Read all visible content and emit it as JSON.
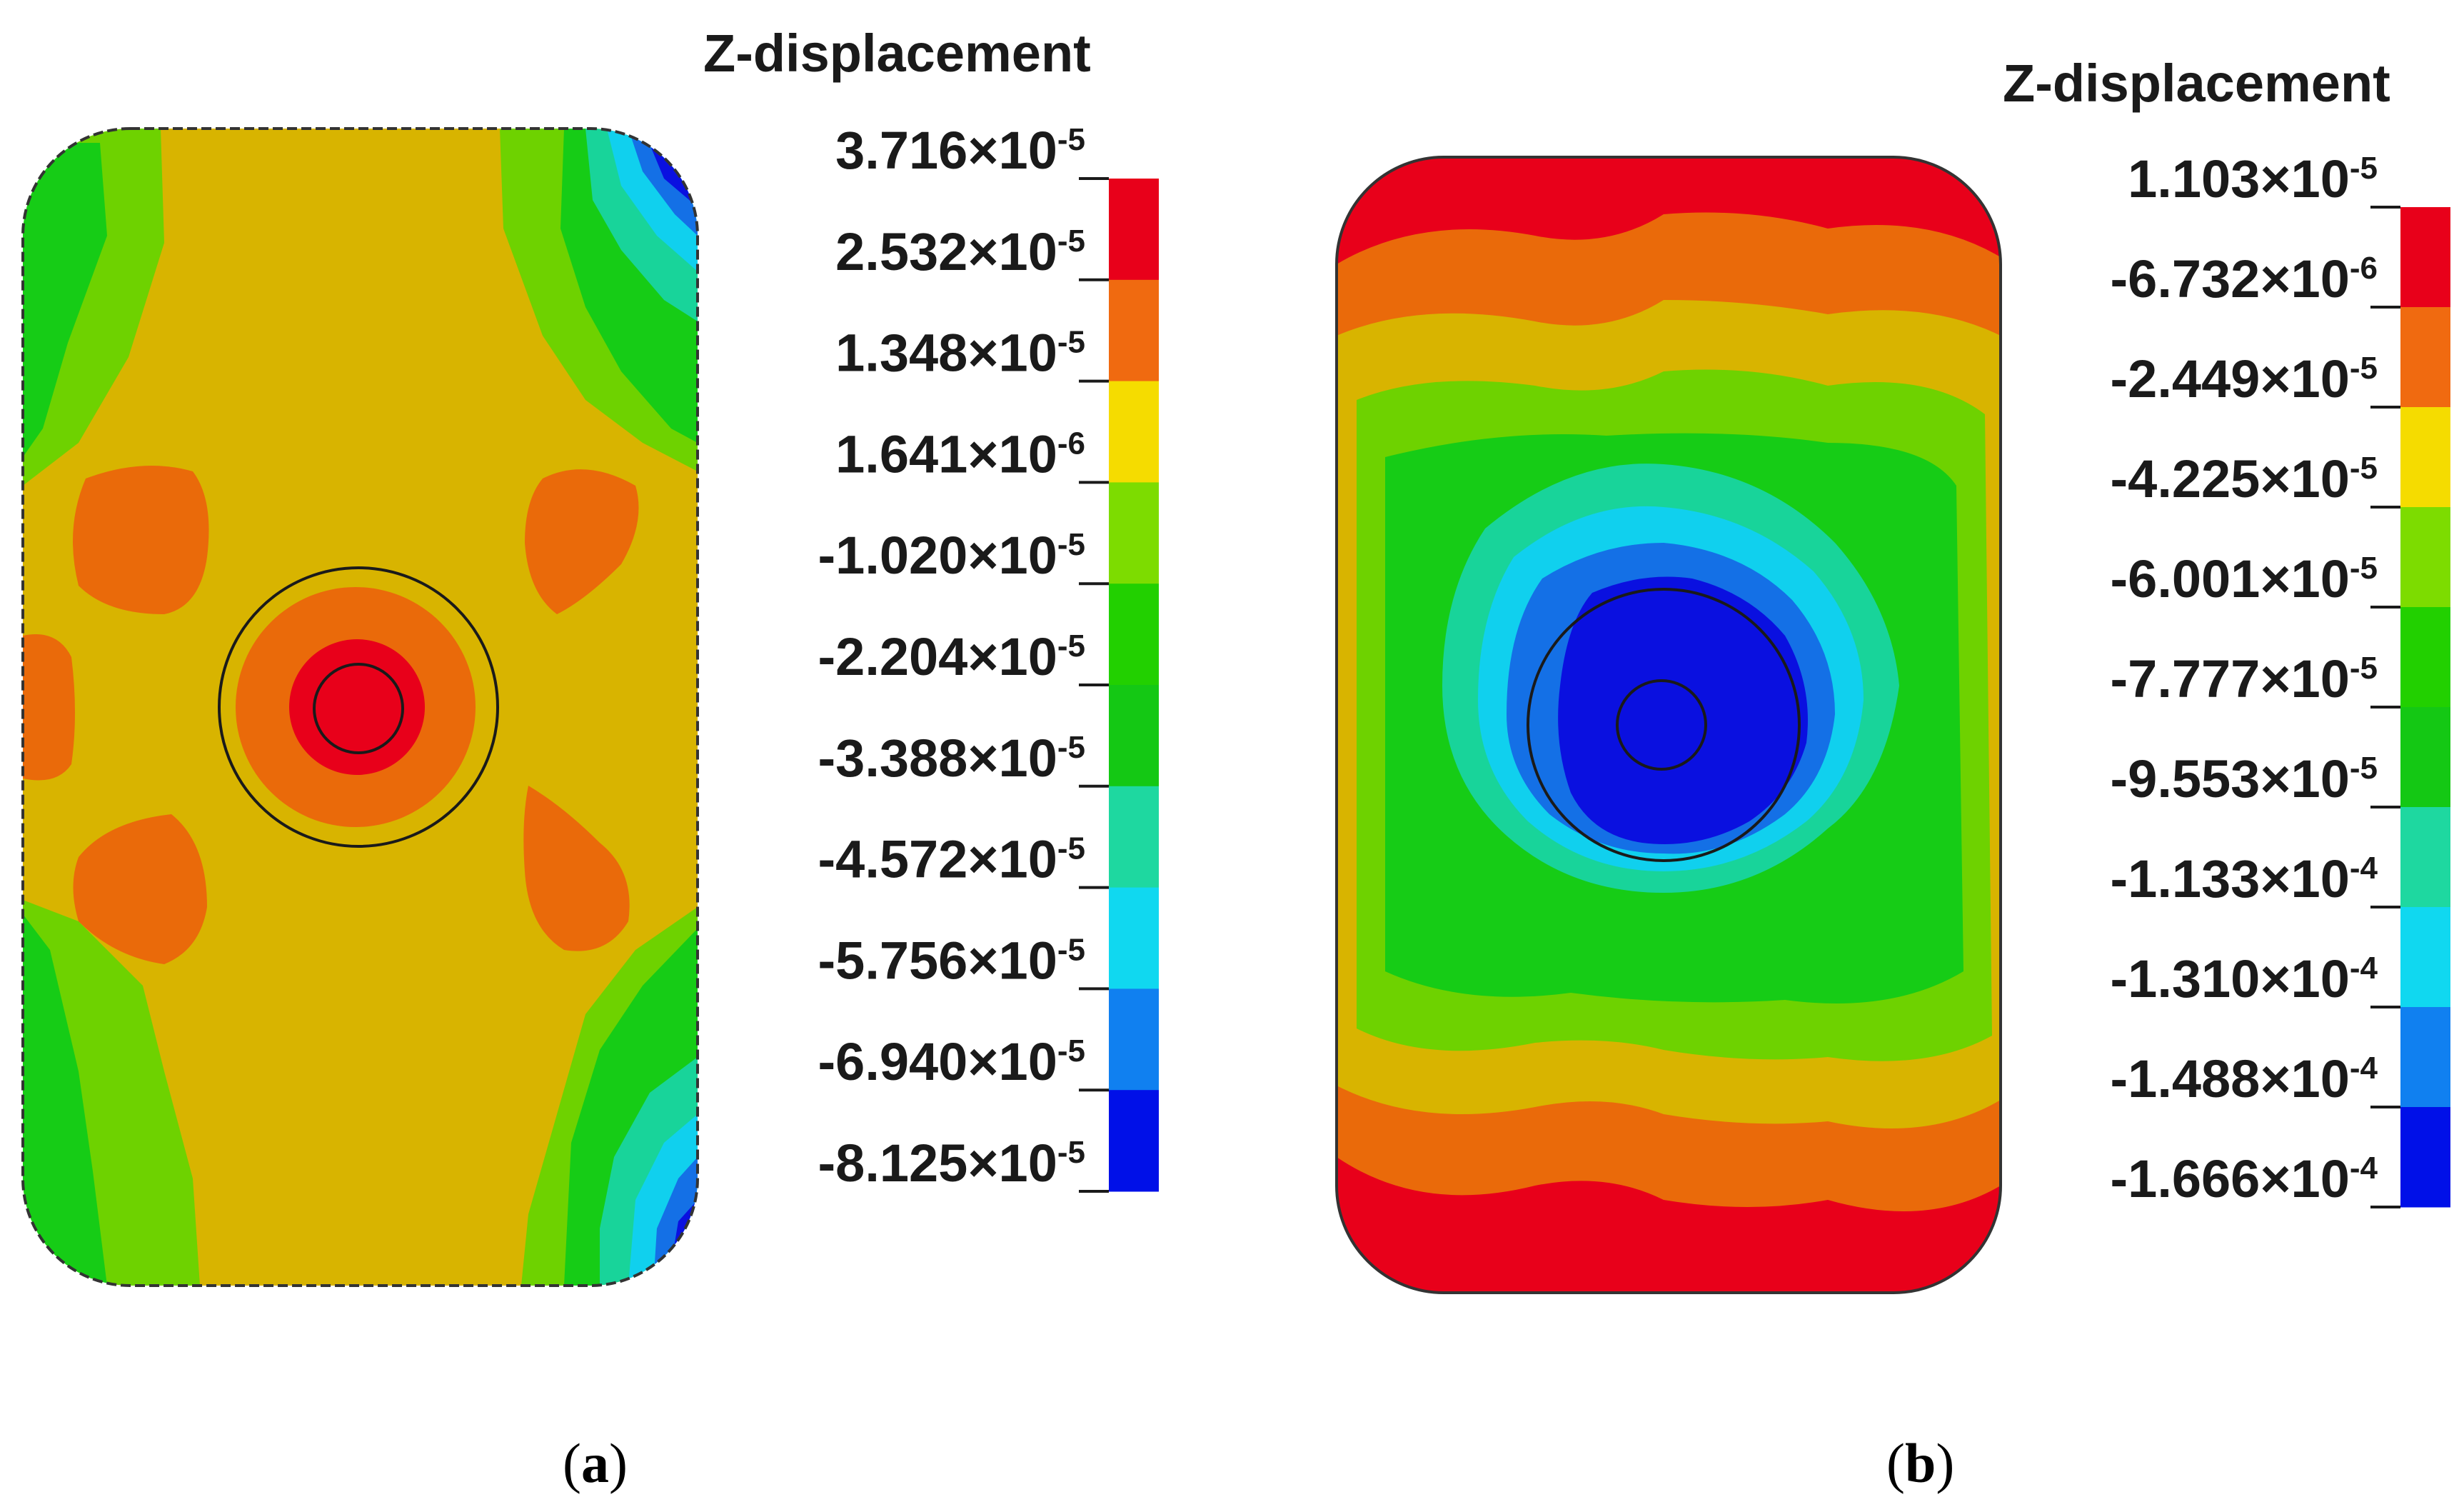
{
  "figure": {
    "panel_a": {
      "label_open": "(",
      "label_letter": "a",
      "label_close": ")",
      "legend": {
        "title": "Z-displacement",
        "ticks": [
          {
            "mant": "3.716×10",
            "exp": "-5"
          },
          {
            "mant": "2.532×10",
            "exp": "-5"
          },
          {
            "mant": "1.348×10",
            "exp": "-5"
          },
          {
            "mant": "1.641×10",
            "exp": "-6"
          },
          {
            "mant": "-1.020×10",
            "exp": "-5"
          },
          {
            "mant": "-2.204×10",
            "exp": "-5"
          },
          {
            "mant": "-3.388×10",
            "exp": "-5"
          },
          {
            "mant": "-4.572×10",
            "exp": "-5"
          },
          {
            "mant": "-5.756×10",
            "exp": "-5"
          },
          {
            "mant": "-6.940×10",
            "exp": "-5"
          },
          {
            "mant": "-8.125×10",
            "exp": "-5"
          }
        ],
        "colors": [
          "#e8001a",
          "#f06a10",
          "#f5dc00",
          "#7ddc00",
          "#22d000",
          "#14c814",
          "#1ed8a0",
          "#10d8f0",
          "#1080f0",
          "#0010e8"
        ]
      }
    },
    "panel_b": {
      "label_open": "(",
      "label_letter": "b",
      "label_close": ")",
      "legend": {
        "title": "Z-displacement",
        "ticks": [
          {
            "mant": "1.103×10",
            "exp": "-5"
          },
          {
            "mant": "-6.732×10",
            "exp": "-6"
          },
          {
            "mant": "-2.449×10",
            "exp": "-5"
          },
          {
            "mant": "-4.225×10",
            "exp": "-5"
          },
          {
            "mant": "-6.001×10",
            "exp": "-5"
          },
          {
            "mant": "-7.777×10",
            "exp": "-5"
          },
          {
            "mant": "-9.553×10",
            "exp": "-5"
          },
          {
            "mant": "-1.133×10",
            "exp": "-4"
          },
          {
            "mant": "-1.310×10",
            "exp": "-4"
          },
          {
            "mant": "-1.488×10",
            "exp": "-4"
          },
          {
            "mant": "-1.666×10",
            "exp": "-4"
          }
        ],
        "colors": [
          "#e8001a",
          "#f06a10",
          "#f5dc00",
          "#7ddc00",
          "#22d000",
          "#14c814",
          "#1ed8a0",
          "#10d8f0",
          "#1080f0",
          "#0010e8"
        ]
      }
    },
    "contour_colors": {
      "red": "#e8001a",
      "orange": "#ea6a0a",
      "yellow": "#d8b400",
      "lightgreen": "#6ed200",
      "green": "#16cc16",
      "teal": "#18d49a",
      "cyan": "#10d0ee",
      "blue": "#1470e6",
      "darkblue": "#0a10e0"
    }
  }
}
